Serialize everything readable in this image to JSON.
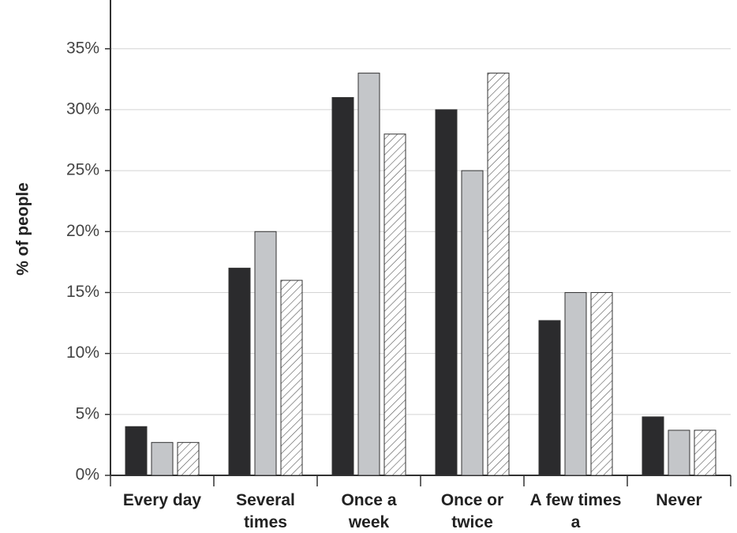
{
  "chart_data": {
    "type": "bar",
    "y_label": "% of people",
    "categories": [
      "Every day",
      "Several times",
      "Once a week",
      "Once or twice",
      "A few times a",
      "Never"
    ],
    "series": [
      {
        "color": "#2b2b2d",
        "values": [
          4.0,
          17,
          31,
          30,
          12.7,
          4.8
        ]
      },
      {
        "color": "#c4c6c9",
        "values": [
          2.7,
          20,
          33,
          25,
          15,
          3.7
        ]
      },
      {
        "color": "#ffffff",
        "hatch": true,
        "values": [
          2.7,
          16,
          28,
          33,
          15,
          3.7
        ]
      }
    ],
    "ylim": [
      0,
      39
    ],
    "yticks": [
      {
        "value": 0,
        "label": "0%"
      },
      {
        "value": 5,
        "label": "5%"
      },
      {
        "value": 10,
        "label": "10%"
      },
      {
        "value": 15,
        "label": "15%"
      },
      {
        "value": 20,
        "label": "20%"
      },
      {
        "value": 25,
        "label": "25%"
      },
      {
        "value": 30,
        "label": "30%"
      },
      {
        "value": 35,
        "label": "35%"
      }
    ],
    "grid": true
  }
}
